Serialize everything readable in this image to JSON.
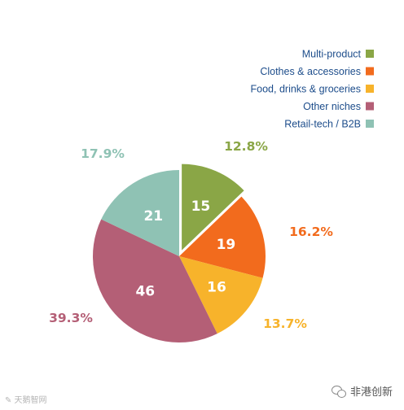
{
  "chart_data": {
    "type": "pie",
    "title": "",
    "legend_position": "top-right",
    "series": [
      {
        "name": "Multi-product",
        "value": 15,
        "percent_label": "12.8%",
        "color": "#8aa646"
      },
      {
        "name": "Clothes & accessories",
        "value": 19,
        "percent_label": "16.2%",
        "color": "#f26b1d"
      },
      {
        "name": "Food, drinks & groceries",
        "value": 16,
        "percent_label": "13.7%",
        "color": "#f7b32b"
      },
      {
        "name": "Other niches",
        "value": 46,
        "percent_label": "39.3%",
        "color": "#b45f76"
      },
      {
        "name": "Retail-tech / B2B",
        "value": 21,
        "percent_label": "17.9%",
        "color": "#8fc2b4"
      }
    ],
    "exploded_slice": "Multi-product"
  },
  "watermarks": {
    "left": "✎ 天鹅智网",
    "right": "非港创新"
  }
}
